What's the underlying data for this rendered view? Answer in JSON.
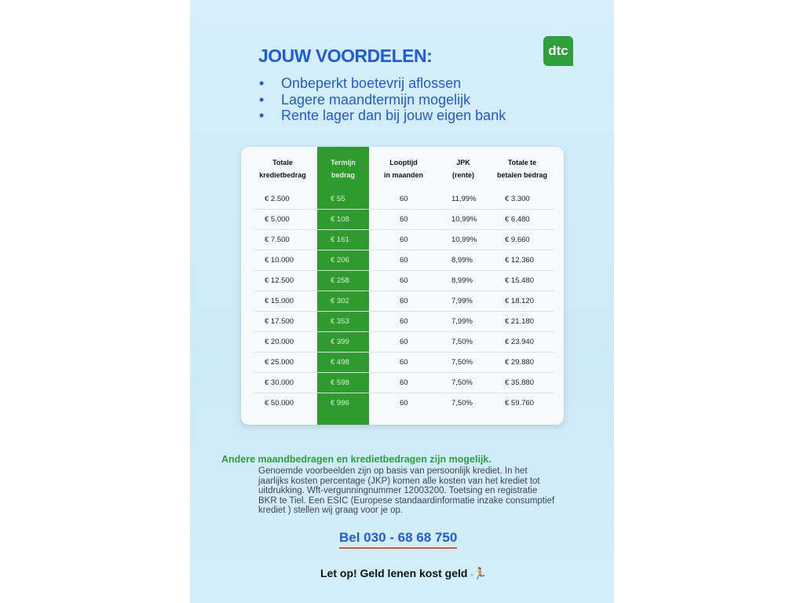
{
  "title": "JOUW VOORDELEN:",
  "logo": "dtc",
  "bullets": [
    "Onbeperkt boetevrij aflossen",
    "Lagere maandtermijn mogelijk",
    "Rente lager dan bij jouw eigen bank"
  ],
  "table": {
    "headers": [
      [
        "Totale",
        "kredietbedrag"
      ],
      [
        "Termijn",
        "bedrag"
      ],
      [
        "Looptijd",
        "in maanden"
      ],
      [
        "JPK",
        "(rente)"
      ],
      [
        "Totale te",
        "betalen bedrag"
      ]
    ],
    "rows": [
      [
        "€ 2.500",
        "€ 55",
        "60",
        "11,99%",
        "€ 3.300"
      ],
      [
        "€ 5.000",
        "€ 108",
        "60",
        "10,99%",
        "€ 6.480"
      ],
      [
        "€ 7.500",
        "€ 161",
        "60",
        "10,99%",
        "€ 9.660"
      ],
      [
        "€ 10.000",
        "€ 206",
        "60",
        "8,99%",
        "€ 12.360"
      ],
      [
        "€ 12.500",
        "€ 258",
        "60",
        "8,99%",
        "€ 15.480"
      ],
      [
        "€ 15.000",
        "€ 302",
        "60",
        "7,99%",
        "€ 18.120"
      ],
      [
        "€ 17.500",
        "€ 353",
        "60",
        "7,99%",
        "€ 21.180"
      ],
      [
        "€ 20.000",
        "€ 399",
        "60",
        "7,50%",
        "€ 23.940"
      ],
      [
        "€ 25.000",
        "€ 498",
        "60",
        "7,50%",
        "€ 29.880"
      ],
      [
        "€ 30.000",
        "€ 598",
        "60",
        "7,50%",
        "€ 35.880"
      ],
      [
        "€ 50.000",
        "€ 996",
        "60",
        "7,50%",
        "€ 59.760"
      ]
    ]
  },
  "subheading": "Andere maandbedragen en kredietbedragen zijn mogelijk.",
  "disclaimer": "Genoemde voorbeelden zijn op basis van persoonlijk krediet. In het jaarlijks kosten percentage (JKP) komen alle kosten van het krediet tot uitdrukking. Wft-vergunningnummer 12003200. Toetsing en registratie BKR te Tiel. Een ESIC (Europese standaardinformatie inzake consumptief krediet ) stellen wij graag voor je op.",
  "phone": "Bel 030 - 68 68 750",
  "warning": "Let op! Geld lenen kost geld",
  "colors": {
    "blue": "#1f5ae0",
    "green": "#2ea03a"
  }
}
